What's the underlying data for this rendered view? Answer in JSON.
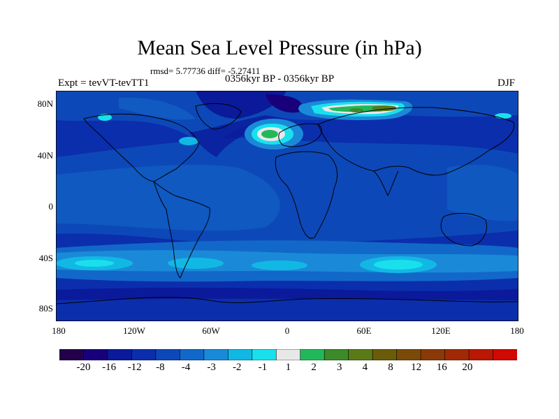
{
  "title": "Mean Sea Level Pressure (in hPa)",
  "stats": "rmsd= 5.77736 diff= -5.27411",
  "subtitle": "0356kyr BP - 0356kyr BP",
  "left_label": "Expt = tevVT-tevTT1",
  "season": "DJF",
  "y_axis_labels": [
    "80N",
    "40N",
    "0",
    "40S",
    "80S"
  ],
  "x_axis_labels": [
    "180",
    "120W",
    "60W",
    "0",
    "60E",
    "120E",
    "180"
  ],
  "colorbar": {
    "colors": [
      "#23004a",
      "#18007a",
      "#0a1a9a",
      "#0b2eac",
      "#0d48b8",
      "#1268c8",
      "#1a8ad8",
      "#12b8e4",
      "#1ae0ee",
      "#e8e8e8",
      "#22b85a",
      "#3d8a2a",
      "#5a7a18",
      "#6a5c0a",
      "#7a4a08",
      "#8a3a08",
      "#a02a05",
      "#b81804",
      "#d00a02"
    ],
    "labels": [
      "-20",
      "-16",
      "-12",
      "-8",
      "-4",
      "-3",
      "-2",
      "-1",
      "1",
      "2",
      "3",
      "4",
      "8",
      "12",
      "16",
      "20"
    ]
  }
}
